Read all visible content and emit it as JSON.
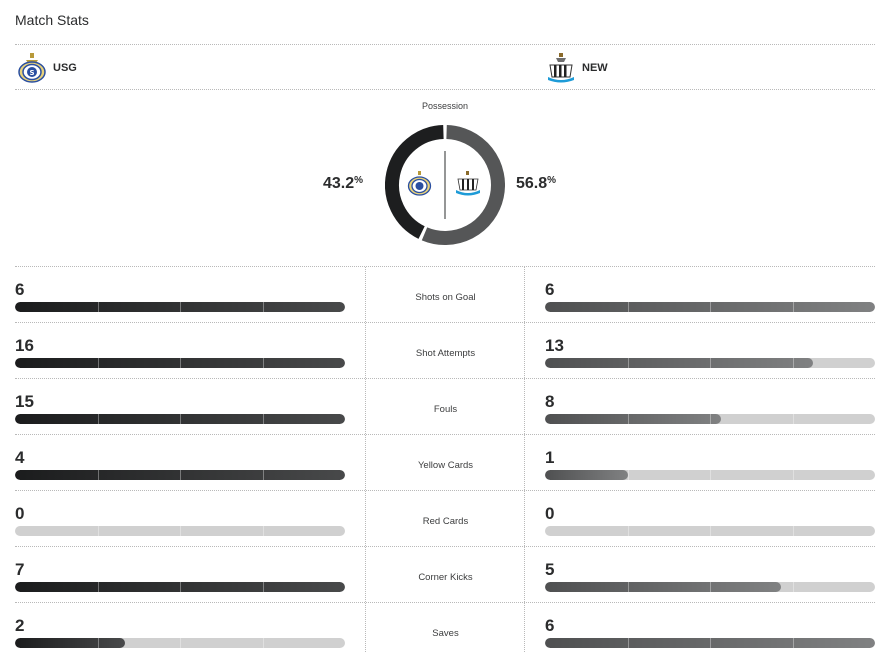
{
  "header": {
    "title": "Match Stats"
  },
  "teams": {
    "home": {
      "abbr": "USG",
      "logo_icon": "usg-crest-icon"
    },
    "away": {
      "abbr": "NEW",
      "logo_icon": "newcastle-crest-icon"
    }
  },
  "possession": {
    "label": "Possession",
    "home_value": "43.2",
    "away_value": "56.8",
    "unit": "%",
    "home_fraction": 0.432,
    "away_fraction": 0.568
  },
  "stats": [
    {
      "label": "Shots on Goal",
      "home": "6",
      "away": "6",
      "home_fill": 1.0,
      "away_fill": 1.0
    },
    {
      "label": "Shot Attempts",
      "home": "16",
      "away": "13",
      "home_fill": 1.0,
      "away_fill": 0.8125
    },
    {
      "label": "Fouls",
      "home": "15",
      "away": "8",
      "home_fill": 1.0,
      "away_fill": 0.533
    },
    {
      "label": "Yellow Cards",
      "home": "4",
      "away": "1",
      "home_fill": 1.0,
      "away_fill": 0.25
    },
    {
      "label": "Red Cards",
      "home": "0",
      "away": "0",
      "home_fill": 0.0,
      "away_fill": 0.0
    },
    {
      "label": "Corner Kicks",
      "home": "7",
      "away": "5",
      "home_fill": 1.0,
      "away_fill": 0.714
    },
    {
      "label": "Saves",
      "home": "2",
      "away": "6",
      "home_fill": 0.333,
      "away_fill": 1.0
    }
  ],
  "colors": {
    "home_dark": "#1b1c1d",
    "away_gray": "#5a5b5c",
    "track": "#d0d0d0"
  }
}
